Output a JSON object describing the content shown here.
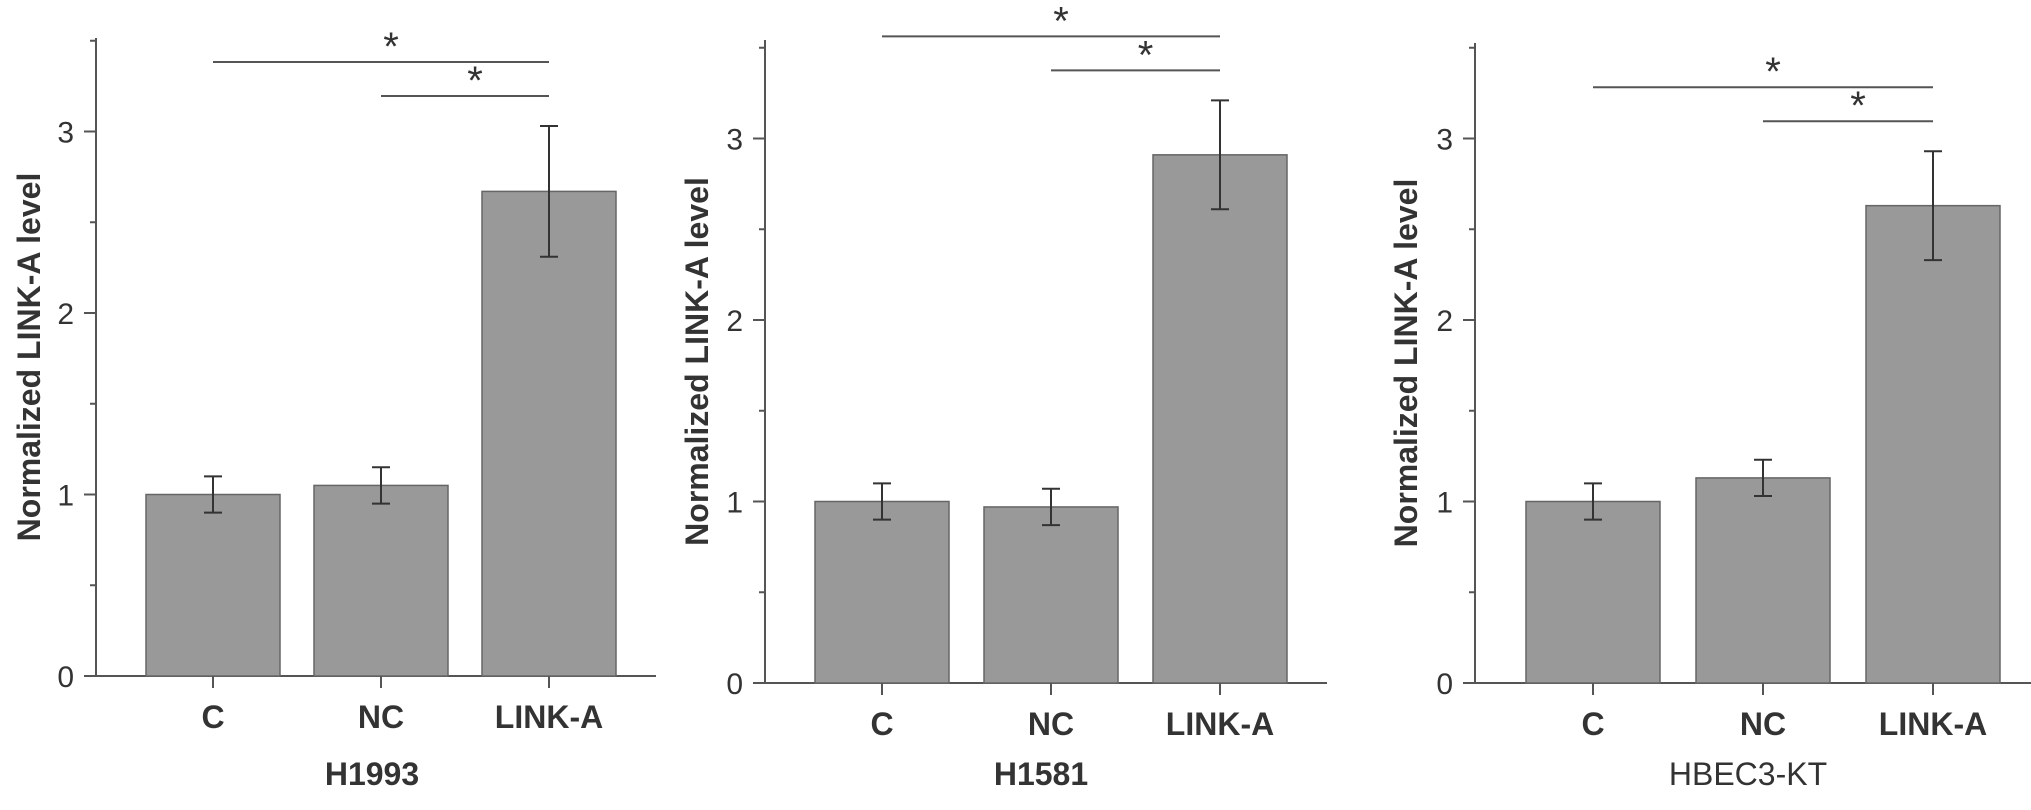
{
  "chart_data": [
    {
      "type": "bar",
      "title": "H1993",
      "ylabel": "Normalized LINK-A level",
      "categories": [
        "C",
        "NC",
        "LINK-A"
      ],
      "values": [
        1.0,
        1.05,
        2.67
      ],
      "errors": [
        0.1,
        0.1,
        0.36
      ],
      "ylim": [
        0,
        3.5
      ],
      "yticks": [
        0,
        1,
        2,
        3
      ],
      "significance": [
        {
          "from": "C",
          "to": "LINK-A",
          "label": "*"
        },
        {
          "from": "NC",
          "to": "LINK-A",
          "label": "*"
        }
      ],
      "bar_color": "#999999"
    },
    {
      "type": "bar",
      "title": "H1581",
      "ylabel": "Normalized LINK-A level",
      "categories": [
        "C",
        "NC",
        "LINK-A"
      ],
      "values": [
        1.0,
        0.97,
        2.91
      ],
      "errors": [
        0.1,
        0.1,
        0.3
      ],
      "ylim": [
        0,
        3.5
      ],
      "yticks": [
        0,
        1,
        2,
        3
      ],
      "significance": [
        {
          "from": "C",
          "to": "LINK-A",
          "label": "*"
        },
        {
          "from": "NC",
          "to": "LINK-A",
          "label": "*"
        }
      ],
      "bar_color": "#999999"
    },
    {
      "type": "bar",
      "title": "HBEC3-KT",
      "ylabel": "Normalized LINK-A level",
      "categories": [
        "C",
        "NC",
        "LINK-A"
      ],
      "values": [
        1.0,
        1.13,
        2.63
      ],
      "errors": [
        0.1,
        0.1,
        0.3
      ],
      "ylim": [
        0,
        3.5
      ],
      "yticks": [
        0,
        1,
        2,
        3
      ],
      "significance": [
        {
          "from": "C",
          "to": "LINK-A",
          "label": "*"
        },
        {
          "from": "NC",
          "to": "LINK-A",
          "label": "*"
        }
      ],
      "bar_color": "#999999"
    }
  ]
}
